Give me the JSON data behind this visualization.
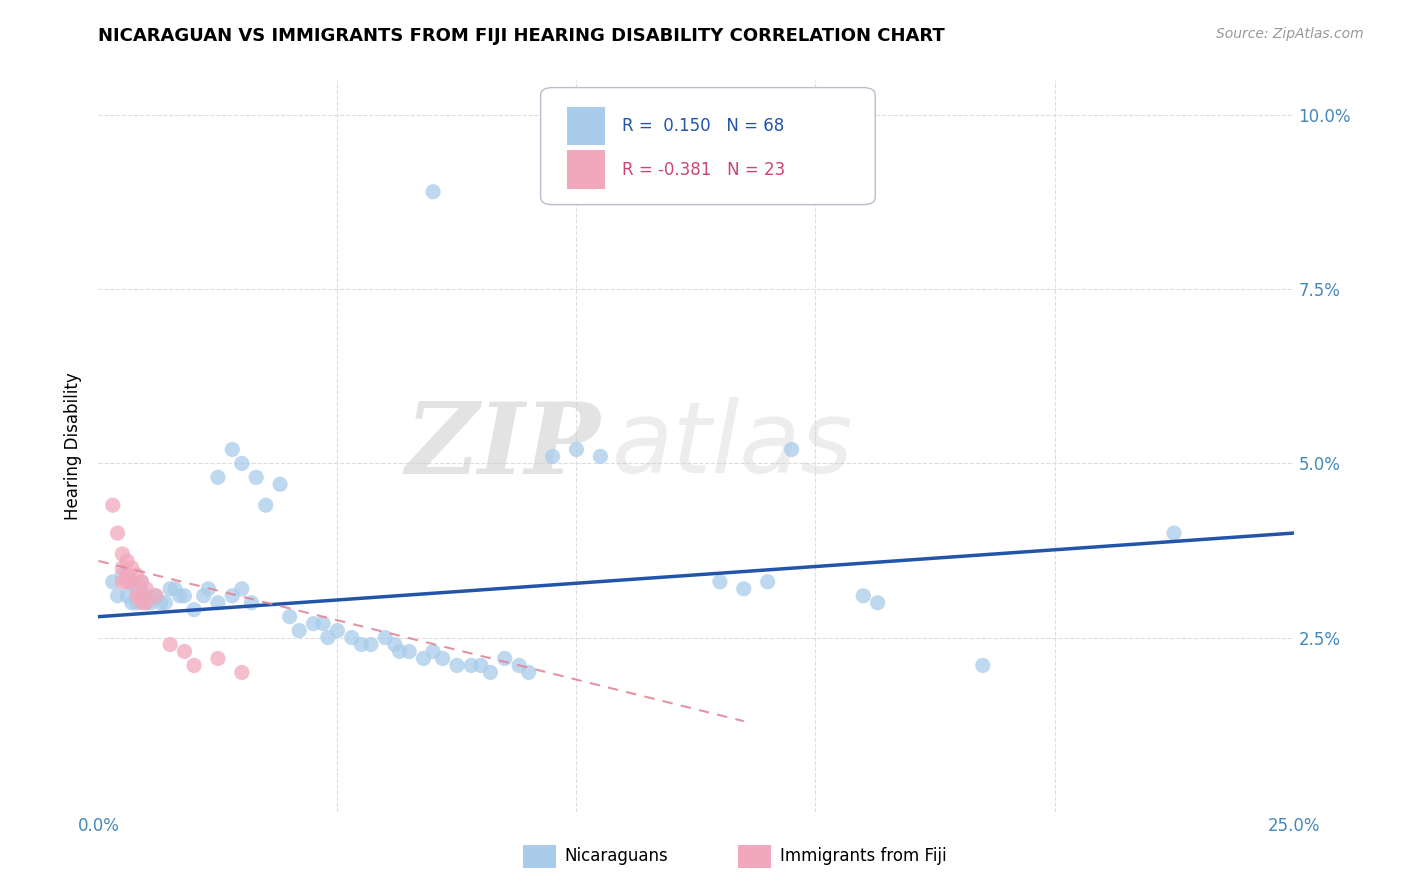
{
  "title": "NICARAGUAN VS IMMIGRANTS FROM FIJI HEARING DISABILITY CORRELATION CHART",
  "source": "Source: ZipAtlas.com",
  "ylabel": "Hearing Disability",
  "xlim": [
    0.0,
    0.25
  ],
  "ylim": [
    0.0,
    0.105
  ],
  "r_blue": 0.15,
  "n_blue": 68,
  "r_pink": -0.381,
  "n_pink": 23,
  "blue_color": "#A8CCEA",
  "pink_color": "#F2A8BC",
  "blue_line_color": "#2255AA",
  "pink_line_color": "#E08898",
  "watermark_zip": "ZIP",
  "watermark_atlas": "atlas",
  "grid_color": "#DDDDDD",
  "blue_scatter": [
    [
      0.003,
      0.033
    ],
    [
      0.004,
      0.031
    ],
    [
      0.005,
      0.034
    ],
    [
      0.006,
      0.031
    ],
    [
      0.007,
      0.033
    ],
    [
      0.007,
      0.03
    ],
    [
      0.008,
      0.032
    ],
    [
      0.008,
      0.03
    ],
    [
      0.009,
      0.033
    ],
    [
      0.009,
      0.031
    ],
    [
      0.01,
      0.031
    ],
    [
      0.01,
      0.03
    ],
    [
      0.011,
      0.03
    ],
    [
      0.012,
      0.031
    ],
    [
      0.013,
      0.03
    ],
    [
      0.014,
      0.03
    ],
    [
      0.015,
      0.032
    ],
    [
      0.016,
      0.032
    ],
    [
      0.017,
      0.031
    ],
    [
      0.018,
      0.031
    ],
    [
      0.02,
      0.029
    ],
    [
      0.022,
      0.031
    ],
    [
      0.023,
      0.032
    ],
    [
      0.025,
      0.03
    ],
    [
      0.028,
      0.031
    ],
    [
      0.03,
      0.032
    ],
    [
      0.032,
      0.03
    ],
    [
      0.025,
      0.048
    ],
    [
      0.028,
      0.052
    ],
    [
      0.03,
      0.05
    ],
    [
      0.033,
      0.048
    ],
    [
      0.035,
      0.044
    ],
    [
      0.038,
      0.047
    ],
    [
      0.04,
      0.028
    ],
    [
      0.042,
      0.026
    ],
    [
      0.045,
      0.027
    ],
    [
      0.047,
      0.027
    ],
    [
      0.048,
      0.025
    ],
    [
      0.05,
      0.026
    ],
    [
      0.053,
      0.025
    ],
    [
      0.055,
      0.024
    ],
    [
      0.057,
      0.024
    ],
    [
      0.06,
      0.025
    ],
    [
      0.062,
      0.024
    ],
    [
      0.063,
      0.023
    ],
    [
      0.065,
      0.023
    ],
    [
      0.068,
      0.022
    ],
    [
      0.07,
      0.023
    ],
    [
      0.072,
      0.022
    ],
    [
      0.075,
      0.021
    ],
    [
      0.078,
      0.021
    ],
    [
      0.08,
      0.021
    ],
    [
      0.082,
      0.02
    ],
    [
      0.085,
      0.022
    ],
    [
      0.088,
      0.021
    ],
    [
      0.09,
      0.02
    ],
    [
      0.095,
      0.051
    ],
    [
      0.1,
      0.052
    ],
    [
      0.105,
      0.051
    ],
    [
      0.07,
      0.089
    ],
    [
      0.13,
      0.033
    ],
    [
      0.135,
      0.032
    ],
    [
      0.14,
      0.033
    ],
    [
      0.145,
      0.052
    ],
    [
      0.16,
      0.031
    ],
    [
      0.163,
      0.03
    ],
    [
      0.185,
      0.021
    ],
    [
      0.225,
      0.04
    ]
  ],
  "pink_scatter": [
    [
      0.003,
      0.044
    ],
    [
      0.004,
      0.04
    ],
    [
      0.005,
      0.037
    ],
    [
      0.005,
      0.035
    ],
    [
      0.005,
      0.033
    ],
    [
      0.006,
      0.036
    ],
    [
      0.006,
      0.034
    ],
    [
      0.006,
      0.033
    ],
    [
      0.007,
      0.035
    ],
    [
      0.007,
      0.033
    ],
    [
      0.008,
      0.034
    ],
    [
      0.008,
      0.031
    ],
    [
      0.009,
      0.033
    ],
    [
      0.009,
      0.031
    ],
    [
      0.009,
      0.03
    ],
    [
      0.01,
      0.032
    ],
    [
      0.01,
      0.03
    ],
    [
      0.012,
      0.031
    ],
    [
      0.015,
      0.024
    ],
    [
      0.018,
      0.023
    ],
    [
      0.02,
      0.021
    ],
    [
      0.025,
      0.022
    ],
    [
      0.03,
      0.02
    ]
  ],
  "blue_line_x": [
    0.0,
    0.25
  ],
  "blue_line_y": [
    0.028,
    0.04
  ],
  "pink_line_x": [
    0.0,
    0.135
  ],
  "pink_line_y": [
    0.036,
    0.013
  ]
}
